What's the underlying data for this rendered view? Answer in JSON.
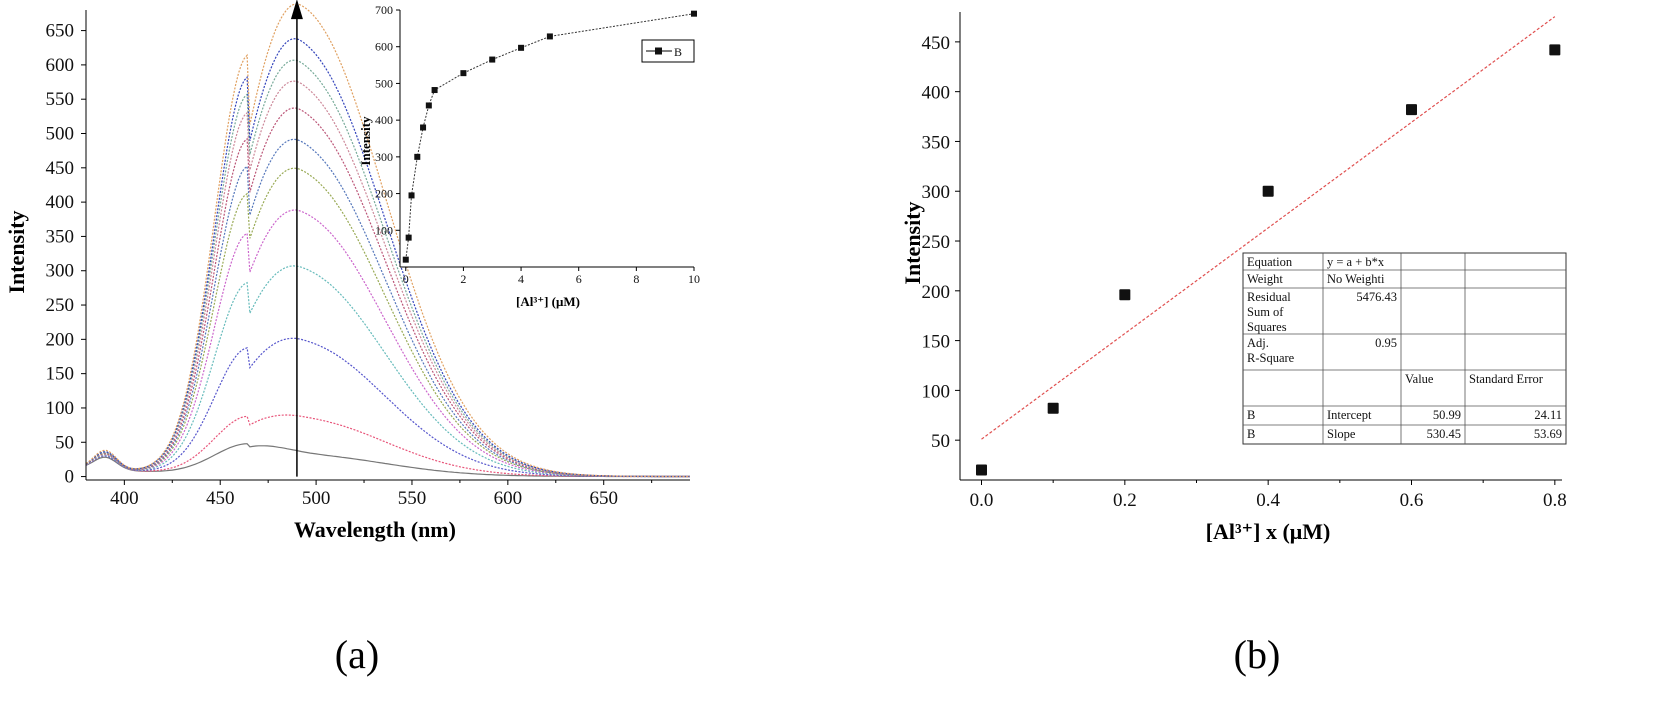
{
  "panel_labels": {
    "a": "(a)",
    "b": "(b)"
  },
  "chart_data": [
    {
      "id": "a-main",
      "type": "line",
      "xlabel": "Wavelength (nm)",
      "ylabel": "Intensity",
      "xlim": [
        380,
        695
      ],
      "ylim": [
        -5,
        680
      ],
      "xticks": [
        400,
        450,
        500,
        550,
        600,
        650
      ],
      "yticks": [
        0,
        50,
        100,
        150,
        200,
        250,
        300,
        350,
        400,
        450,
        500,
        550,
        600,
        650
      ],
      "trend_arrow": {
        "x": 490,
        "y_from": 0,
        "y_to": 690
      },
      "peak_positions": {
        "shoulder": 465,
        "peak": 492
      },
      "series": [
        {
          "color": "#777777",
          "shoulder": 45,
          "peak": 30,
          "p390": 18
        },
        {
          "color": "#e8557a",
          "shoulder": 85,
          "peak": 82,
          "p390": 20
        },
        {
          "color": "#5555cc",
          "shoulder": 185,
          "peak": 192,
          "p390": 20
        },
        {
          "color": "#66bbbb",
          "shoulder": 280,
          "peak": 295,
          "p390": 21
        },
        {
          "color": "#cc66cc",
          "shoulder": 352,
          "peak": 375,
          "p390": 22
        },
        {
          "color": "#99aa55",
          "shoulder": 410,
          "peak": 433,
          "p390": 23
        },
        {
          "color": "#5577bb",
          "shoulder": 450,
          "peak": 473,
          "p390": 24
        },
        {
          "color": "#bb5577",
          "shoulder": 490,
          "peak": 518,
          "p390": 24
        },
        {
          "color": "#cc8899",
          "shoulder": 528,
          "peak": 555,
          "p390": 25
        },
        {
          "color": "#77aa99",
          "shoulder": 555,
          "peak": 585,
          "p390": 25
        },
        {
          "color": "#3344bb",
          "shoulder": 580,
          "peak": 617,
          "p390": 26
        },
        {
          "color": "#e0a060",
          "shoulder": 612,
          "peak": 672,
          "p390": 28
        }
      ]
    },
    {
      "id": "a-inset",
      "type": "line",
      "xlabel": "[Al³⁺] (μM)",
      "ylabel": "Intensity",
      "xlim": [
        -0.2,
        10
      ],
      "ylim": [
        0,
        700
      ],
      "xticks": [
        0,
        2,
        4,
        6,
        8,
        10
      ],
      "yticks": [
        100,
        200,
        300,
        400,
        500,
        600,
        700
      ],
      "legend": {
        "label": "B",
        "position": "top-right"
      },
      "series": [
        {
          "name": "B",
          "x": [
            0,
            0.1,
            0.2,
            0.4,
            0.6,
            0.8,
            1,
            2,
            3,
            4,
            5,
            10
          ],
          "y": [
            20,
            80,
            195,
            300,
            380,
            440,
            482,
            528,
            565,
            597,
            628,
            690
          ]
        }
      ]
    },
    {
      "id": "b",
      "type": "scatter",
      "xlabel": "[Al³⁺] x (μM)",
      "ylabel": "Intensity",
      "xlim": [
        -0.03,
        0.81
      ],
      "ylim": [
        10,
        480
      ],
      "xticks": [
        0.0,
        0.2,
        0.4,
        0.6,
        0.8
      ],
      "xticklabels": [
        "0.0",
        "0.2",
        "0.4",
        "0.6",
        "0.8"
      ],
      "yticks": [
        50,
        100,
        150,
        200,
        250,
        300,
        350,
        400,
        450
      ],
      "points": {
        "x": [
          0.0,
          0.1,
          0.2,
          0.4,
          0.6,
          0.8
        ],
        "y": [
          20,
          82,
          196,
          300,
          382,
          442
        ]
      },
      "fit": {
        "intercept": 50.99,
        "slope": 530.45,
        "x_range": [
          0.0,
          0.8
        ],
        "color": "#e05050"
      },
      "stats_table": {
        "rows": [
          [
            "Equation",
            "y = a + b*x",
            "",
            ""
          ],
          [
            "Weight",
            "No Weighti",
            "",
            ""
          ],
          [
            "Residual\nSum of\nSquares",
            "5476.43",
            "",
            ""
          ],
          [
            "Adj.\nR-Square",
            "0.95",
            "",
            ""
          ],
          [
            "",
            "",
            "Value",
            "Standard Error"
          ],
          [
            "B",
            "Intercept",
            "50.99",
            "24.11"
          ],
          [
            "B",
            "Slope",
            "530.45",
            "53.69"
          ]
        ]
      }
    }
  ]
}
